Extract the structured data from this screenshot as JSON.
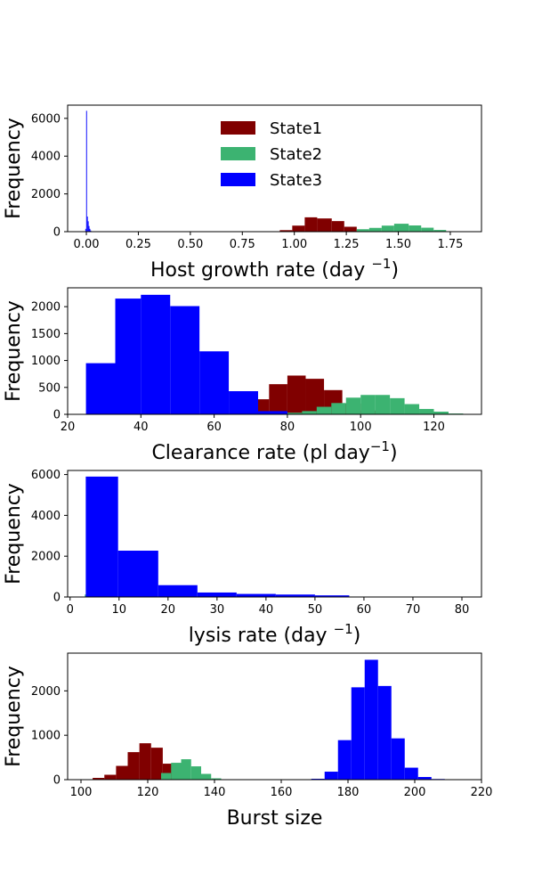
{
  "colors": {
    "State1": "#800000",
    "State2": "#3cb371",
    "State3": "#0000ff"
  },
  "legend": {
    "placement": "top-center (first panel)",
    "entries": [
      {
        "name": "State1",
        "color": "#800000"
      },
      {
        "name": "State2",
        "color": "#3cb371"
      },
      {
        "name": "State3",
        "color": "#0000ff"
      }
    ]
  },
  "chart_data": [
    {
      "type": "bar",
      "xlabel": "Host growth rate (day ",
      "xlabel_sup": "−1",
      "xlabel_end": ")",
      "ylabel": "Frequency",
      "xlim": [
        -0.09,
        1.9
      ],
      "ylim": [
        0,
        6700
      ],
      "xticks": [
        0.0,
        0.25,
        0.5,
        0.75,
        1.0,
        1.25,
        1.5,
        1.75
      ],
      "xtick_labels": [
        "0.00",
        "0.25",
        "0.50",
        "0.75",
        "1.00",
        "1.25",
        "1.50",
        "1.75"
      ],
      "yticks": [
        0,
        2000,
        4000,
        6000
      ],
      "ytick_labels": [
        "0",
        "2000",
        "4000",
        "6000"
      ],
      "series": [
        {
          "name": "State1",
          "bins": [
            [
              0.93,
              0.99,
              80
            ],
            [
              0.99,
              1.05,
              320
            ],
            [
              1.05,
              1.11,
              760
            ],
            [
              1.11,
              1.18,
              700
            ],
            [
              1.18,
              1.24,
              560
            ],
            [
              1.24,
              1.3,
              260
            ],
            [
              1.3,
              1.36,
              60
            ]
          ]
        },
        {
          "name": "State2",
          "bins": [
            [
              1.3,
              1.36,
              130
            ],
            [
              1.36,
              1.42,
              200
            ],
            [
              1.42,
              1.48,
              320
            ],
            [
              1.48,
              1.55,
              420
            ],
            [
              1.55,
              1.61,
              330
            ],
            [
              1.61,
              1.67,
              210
            ],
            [
              1.67,
              1.73,
              90
            ],
            [
              1.73,
              1.79,
              20
            ]
          ]
        },
        {
          "name": "State3",
          "bins": [
            [
              -0.005,
              -0.001,
              150
            ],
            [
              -0.001,
              0.003,
              6400
            ],
            [
              0.003,
              0.007,
              800
            ],
            [
              0.007,
              0.011,
              550
            ],
            [
              0.011,
              0.015,
              300
            ],
            [
              0.015,
              0.019,
              150
            ],
            [
              0.019,
              0.023,
              60
            ]
          ]
        }
      ]
    },
    {
      "type": "bar",
      "xlabel": "Clearance rate (pl day",
      "xlabel_sup": "−1",
      "xlabel_end": ")",
      "ylabel": "Frequency",
      "xlim": [
        20,
        133
      ],
      "ylim": [
        0,
        2350
      ],
      "xticks": [
        20,
        40,
        60,
        80,
        100,
        120
      ],
      "xtick_labels": [
        "20",
        "40",
        "60",
        "80",
        "100",
        "120"
      ],
      "yticks": [
        0,
        500,
        1000,
        1500,
        2000
      ],
      "ytick_labels": [
        "0",
        "500",
        "1000",
        "1500",
        "2000"
      ],
      "series": [
        {
          "name": "State1",
          "bins": [
            [
              65,
              70,
              100
            ],
            [
              70,
              75,
              280
            ],
            [
              75,
              80,
              560
            ],
            [
              80,
              85,
              720
            ],
            [
              85,
              90,
              660
            ],
            [
              90,
              95,
              450
            ],
            [
              95,
              100,
              200
            ],
            [
              100,
              105,
              70
            ]
          ]
        },
        {
          "name": "State2",
          "bins": [
            [
              80,
              84,
              30
            ],
            [
              84,
              88,
              60
            ],
            [
              88,
              92,
              140
            ],
            [
              92,
              96,
              210
            ],
            [
              96,
              100,
              310
            ],
            [
              100,
              104,
              360
            ],
            [
              104,
              108,
              360
            ],
            [
              108,
              112,
              300
            ],
            [
              112,
              116,
              190
            ],
            [
              116,
              120,
              100
            ],
            [
              120,
              124,
              50
            ],
            [
              124,
              128,
              15
            ]
          ]
        },
        {
          "name": "State3",
          "bins": [
            [
              25,
              33,
              950
            ],
            [
              33,
              40,
              2150
            ],
            [
              40,
              48,
              2220
            ],
            [
              48,
              56,
              2010
            ],
            [
              56,
              64,
              1170
            ],
            [
              64,
              72,
              430
            ],
            [
              72,
              80,
              60
            ]
          ]
        }
      ]
    },
    {
      "type": "bar",
      "xlabel": "lysis rate (day ",
      "xlabel_sup": "−1",
      "xlabel_end": ")",
      "ylabel": "Frequency",
      "xlim": [
        -0.5,
        84
      ],
      "ylim": [
        0,
        6200
      ],
      "xticks": [
        0,
        10,
        20,
        30,
        40,
        50,
        60,
        70,
        80
      ],
      "xtick_labels": [
        "0",
        "10",
        "20",
        "30",
        "40",
        "50",
        "60",
        "70",
        "80"
      ],
      "yticks": [
        0,
        2000,
        4000,
        6000
      ],
      "ytick_labels": [
        "0",
        "2000",
        "4000",
        "6000"
      ],
      "series": [
        {
          "name": "State1",
          "bins": [
            [
              3.5,
              4.0,
              120
            ],
            [
              4.0,
              4.5,
              350
            ],
            [
              4.5,
              5.0,
              650
            ],
            [
              5.0,
              5.5,
              400
            ],
            [
              5.5,
              6.0,
              200
            ],
            [
              6.0,
              6.5,
              60
            ]
          ]
        },
        {
          "name": "State2",
          "bins": [
            [
              3.0,
              3.5,
              120
            ],
            [
              3.5,
              4.0,
              250
            ],
            [
              4.0,
              4.5,
              120
            ]
          ]
        },
        {
          "name": "State3",
          "bins": [
            [
              3.2,
              9.8,
              5900
            ],
            [
              9.8,
              18.0,
              2270
            ],
            [
              18.0,
              26.0,
              580
            ],
            [
              26.0,
              34.0,
              220
            ],
            [
              34.0,
              42.0,
              150
            ],
            [
              42.0,
              50.0,
              120
            ],
            [
              50.0,
              57.0,
              80
            ]
          ]
        }
      ]
    },
    {
      "type": "bar",
      "xlabel": "Burst size",
      "xlabel_sup": "",
      "xlabel_end": "",
      "ylabel": "Frequency",
      "xlim": [
        96,
        220
      ],
      "ylim": [
        0,
        2850
      ],
      "xticks": [
        100,
        120,
        140,
        160,
        180,
        200,
        220
      ],
      "xtick_labels": [
        "100",
        "120",
        "140",
        "160",
        "180",
        "200",
        "220"
      ],
      "yticks": [
        0,
        1000,
        2000
      ],
      "ytick_labels": [
        "0",
        "1000",
        "2000"
      ],
      "series": [
        {
          "name": "State1",
          "bins": [
            [
              103.5,
              107,
              40
            ],
            [
              107,
              110.5,
              110
            ],
            [
              110.5,
              114,
              310
            ],
            [
              114,
              117.5,
              620
            ],
            [
              117.5,
              121,
              820
            ],
            [
              121,
              124.5,
              720
            ],
            [
              124.5,
              128,
              360
            ],
            [
              128,
              131.5,
              60
            ]
          ]
        },
        {
          "name": "State2",
          "bins": [
            [
              124,
              127,
              150
            ],
            [
              127,
              130,
              380
            ],
            [
              130,
              133,
              460
            ],
            [
              133,
              136,
              300
            ],
            [
              136,
              139,
              130
            ],
            [
              139,
              142,
              30
            ],
            [
              142,
              145,
              5
            ]
          ]
        },
        {
          "name": "State3",
          "bins": [
            [
              169,
              173,
              20
            ],
            [
              173,
              177,
              180
            ],
            [
              177,
              181,
              890
            ],
            [
              181,
              185,
              2080
            ],
            [
              185,
              189,
              2700
            ],
            [
              189,
              193,
              2110
            ],
            [
              193,
              197,
              930
            ],
            [
              197,
              201,
              270
            ],
            [
              201,
              205,
              60
            ],
            [
              205,
              209,
              15
            ]
          ]
        }
      ]
    }
  ]
}
